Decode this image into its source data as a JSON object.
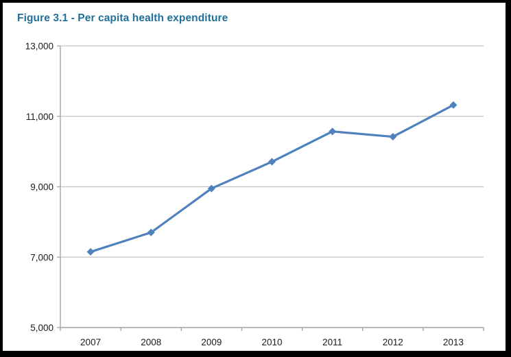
{
  "page": {
    "frame_border_color": "#000000",
    "background_color": "#ffffff"
  },
  "title": {
    "text": "Figure 3.1 - Per capita health expenditure",
    "color": "#217099"
  },
  "chart_data": {
    "type": "line",
    "title": "Figure 3.1 - Per capita health expenditure",
    "categories": [
      "2007",
      "2008",
      "2009",
      "2010",
      "2011",
      "2012",
      "2013"
    ],
    "series": [
      {
        "name": "Per capita health expenditure",
        "values": [
          7150,
          7700,
          8950,
          9710,
          10570,
          10420,
          11320
        ],
        "color": "#4F81BD",
        "marker": "diamond",
        "line_width": 3.2
      }
    ],
    "xlabel": "",
    "ylabel": "",
    "ylim": [
      5000,
      13000
    ],
    "ytick_interval": 2000,
    "ytick_labels": [
      "5,000",
      "7,000",
      "9,000",
      "11,000",
      "13,000"
    ],
    "grid": "horizontal",
    "legend": "none",
    "axis_color": "#A6A6A6",
    "gridline_color": "#C2C2C2",
    "tick_label_color": "#1A1A1A",
    "tick_label_font_size": 13.5
  }
}
